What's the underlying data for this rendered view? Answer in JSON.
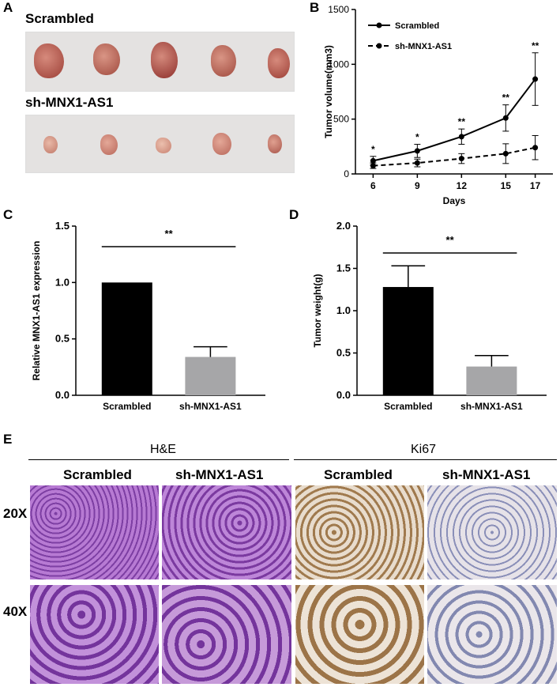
{
  "panels": {
    "a": {
      "letter": "A",
      "group1": "Scrambled",
      "group2": "sh-MNX1-AS1"
    },
    "b": {
      "letter": "B"
    },
    "c": {
      "letter": "C"
    },
    "d": {
      "letter": "D"
    },
    "e": {
      "letter": "E",
      "stain1": "H&E",
      "stain2": "Ki67",
      "col_labels": [
        "Scrambled",
        "sh-MNX1-AS1",
        "Scrambled",
        "sh-MNX1-AS1"
      ],
      "row_labels": [
        "20X",
        "40X"
      ]
    }
  },
  "colors": {
    "he_tissue": "#a35fc4",
    "ki67_tissue": "#d9c7b0",
    "scrambled_bar": "#000000",
    "sh_bar": "#a6a6a8",
    "photo_bg": "#e6e4e3",
    "tumor": "#b8554a"
  },
  "chart_data": [
    {
      "id": "B",
      "type": "line",
      "xlabel": "Days",
      "ylabel": "Tumor volume(mm3)",
      "x": [
        6,
        9,
        12,
        15,
        17
      ],
      "xticks": [
        "6",
        "9",
        "12",
        "15",
        "17"
      ],
      "ylim": [
        0,
        1500
      ],
      "yticks": [
        "0",
        "500",
        "1000",
        "1500"
      ],
      "legend_position": "top-left",
      "series": [
        {
          "name": "Scrambled",
          "values": [
            120,
            210,
            340,
            510,
            865
          ],
          "errors": [
            40,
            60,
            70,
            120,
            240
          ],
          "style": "solid"
        },
        {
          "name": "sh-MNX1-AS1",
          "values": [
            75,
            100,
            140,
            185,
            240
          ],
          "errors": [
            25,
            35,
            45,
            90,
            110
          ],
          "style": "dashed"
        }
      ],
      "significance": [
        "*",
        "*",
        "**",
        "**",
        "**"
      ]
    },
    {
      "id": "C",
      "type": "bar",
      "categories": [
        "Scrambled",
        "sh-MNX1-AS1"
      ],
      "values": [
        1.0,
        0.34
      ],
      "errors": [
        0,
        0.09
      ],
      "ylabel": "Relative MNX1-AS1 expression",
      "ylim": [
        0,
        1.5
      ],
      "yticks": [
        "0.0",
        "0.5",
        "1.0",
        "1.5"
      ],
      "significance": "**"
    },
    {
      "id": "D",
      "type": "bar",
      "categories": [
        "Scrambled",
        "sh-MNX1-AS1"
      ],
      "values": [
        1.28,
        0.34
      ],
      "errors": [
        0.25,
        0.13
      ],
      "ylabel": "Tumor weight(g)",
      "ylim": [
        0,
        2.0
      ],
      "yticks": [
        "0.0",
        "0.5",
        "1.0",
        "1.5",
        "2.0"
      ],
      "significance": "**"
    }
  ]
}
